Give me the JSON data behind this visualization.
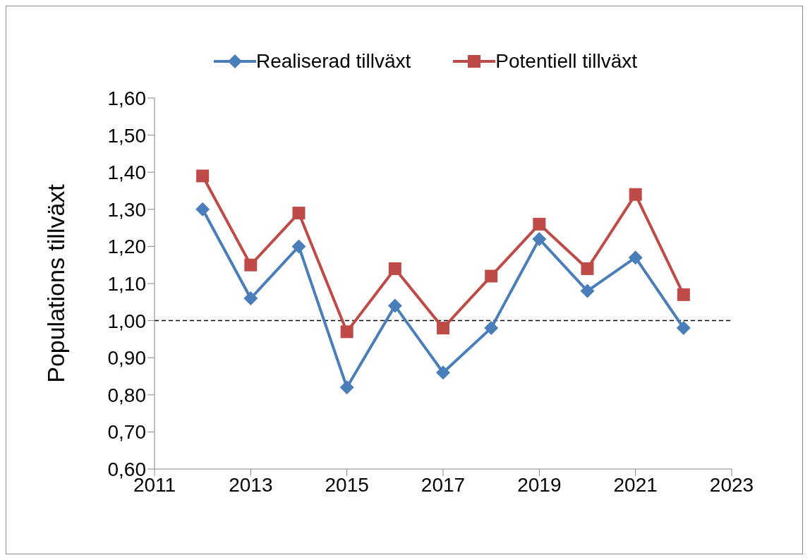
{
  "chart_data": {
    "type": "line",
    "ylabel": "Populations tillväxt",
    "x": [
      2012,
      2013,
      2014,
      2015,
      2016,
      2017,
      2018,
      2019,
      2020,
      2021,
      2022
    ],
    "series": [
      {
        "name": "Realiserad tillväxt",
        "color": "#4a7ebb",
        "marker": "diamond",
        "values": [
          1.3,
          1.06,
          1.2,
          0.82,
          1.04,
          0.86,
          0.98,
          1.22,
          1.08,
          1.17,
          0.98
        ]
      },
      {
        "name": "Potentiell tillväxt",
        "color": "#be4b48",
        "marker": "square",
        "values": [
          1.39,
          1.15,
          1.29,
          0.97,
          1.14,
          0.98,
          1.12,
          1.26,
          1.14,
          1.34,
          1.07
        ]
      }
    ],
    "xlim": [
      2011,
      2023
    ],
    "xticks": [
      2011,
      2013,
      2015,
      2017,
      2019,
      2021,
      2023
    ],
    "ylim": [
      0.6,
      1.6
    ],
    "yticks": [
      {
        "value": 0.6,
        "label": "0,60"
      },
      {
        "value": 0.7,
        "label": "0,70"
      },
      {
        "value": 0.8,
        "label": "0,80"
      },
      {
        "value": 0.9,
        "label": "0,90"
      },
      {
        "value": 1.0,
        "label": "1,00"
      },
      {
        "value": 1.1,
        "label": "1,10"
      },
      {
        "value": 1.2,
        "label": "1,20"
      },
      {
        "value": 1.3,
        "label": "1,30"
      },
      {
        "value": 1.4,
        "label": "1,40"
      },
      {
        "value": 1.5,
        "label": "1,50"
      },
      {
        "value": 1.6,
        "label": "1,60"
      }
    ],
    "ref_lines": [
      {
        "axis": "y",
        "value": 1.0,
        "color": "#000000",
        "line_style": "dashed"
      }
    ],
    "grid": false,
    "legend": "top",
    "line_style": "solid"
  }
}
